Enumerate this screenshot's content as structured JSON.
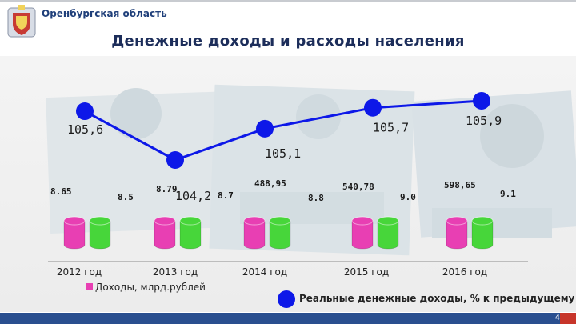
{
  "header": {
    "region": "Оренбургская область",
    "page_title": "Денежные доходы и расходы населения"
  },
  "legend": {
    "income_label": "Доходы, млрд.рублей",
    "real_income_label": "Реальные денежные доходы, % к предыдущему"
  },
  "footer": {
    "page_number": "4"
  },
  "colors": {
    "income": "#e83fb3",
    "secondary_bar": "#47d63a",
    "real_income": "#0d18e8",
    "footer": "#2a4f8f",
    "footer_accent": "#c7352a"
  },
  "chart_data": {
    "type": "bar",
    "categories": [
      "2012 год",
      "2013 год",
      "2014 год",
      "2015 год",
      "2016 год"
    ],
    "series": [
      {
        "name": "Доходы, млрд.рублей",
        "values": [
          null,
          null,
          488.95,
          540.78,
          598.65
        ]
      },
      {
        "values": [
          null,
          null,
          null,
          null,
          null
        ]
      }
    ],
    "line_series": {
      "name": "Реальные денежные доходы, % к предыдущему",
      "values": [
        105.6,
        104.2,
        105.1,
        105.7,
        105.9
      ]
    },
    "extra_labels": [
      [
        "8.65",
        "8.5"
      ],
      [
        "8.79",
        "8.7"
      ],
      [
        "8.8"
      ],
      [
        "9.0"
      ],
      [
        "9.1"
      ]
    ],
    "value_labels": [
      "105,6",
      "104,2",
      "105,1",
      "105,7",
      "105,9"
    ],
    "income_labels": [
      "",
      "",
      "488,95",
      "540,78",
      "598,65"
    ]
  }
}
